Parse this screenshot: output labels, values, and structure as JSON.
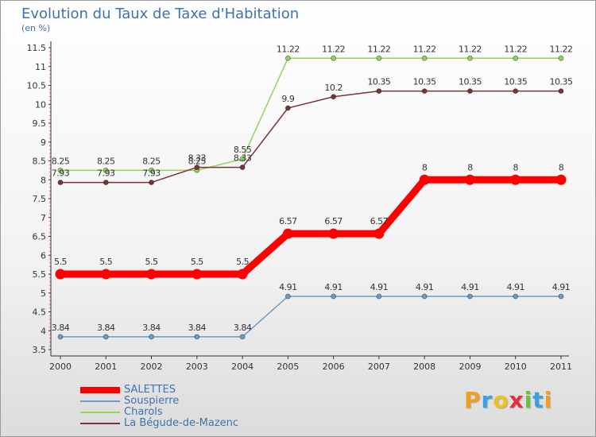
{
  "title": "Evolution du Taux de Taxe d'Habitation",
  "subtitle": "(en %)",
  "logo": {
    "letters": [
      "P",
      "r",
      "o",
      "x",
      "i",
      "t",
      "i"
    ],
    "colors": [
      "#f0a020",
      "#3aa0e0",
      "#f0c020",
      "#e03040",
      "#6ac040",
      "#3aa0e0",
      "#f0a020"
    ]
  },
  "chart_data": {
    "type": "line",
    "categories": [
      "2000",
      "2001",
      "2002",
      "2003",
      "2004",
      "2005",
      "2006",
      "2007",
      "2008",
      "2009",
      "2010",
      "2011"
    ],
    "ylim": [
      3.5,
      11.5
    ],
    "yticks": [
      "3.5",
      "4",
      "4.5",
      "5",
      "5.5",
      "6",
      "6.5",
      "7",
      "7.5",
      "8",
      "8.5",
      "9",
      "9.5",
      "10",
      "10.5",
      "11",
      "11.5"
    ],
    "series": [
      {
        "name": "SALETTES",
        "color": "#ff0000",
        "width": 9,
        "radius": 6.5,
        "values": [
          5.5,
          5.5,
          5.5,
          5.5,
          5.5,
          6.57,
          6.57,
          6.57,
          8,
          8,
          8,
          8
        ],
        "labels": [
          "5.5",
          "5.5",
          "5.5",
          "5.5",
          "5.5",
          "6.57",
          "6.57",
          "6.57",
          "8",
          "8",
          "8",
          "8"
        ]
      },
      {
        "name": "Souspierre",
        "color": "#6a9cc8",
        "width": 1.5,
        "radius": 3,
        "values": [
          3.84,
          3.84,
          3.84,
          3.84,
          3.84,
          4.91,
          4.91,
          4.91,
          4.91,
          4.91,
          4.91,
          4.91
        ],
        "labels": [
          "3.84",
          "3.84",
          "3.84",
          "3.84",
          "3.84",
          "4.91",
          "4.91",
          "4.91",
          "4.91",
          "4.91",
          "4.91",
          "4.91"
        ]
      },
      {
        "name": "Charols",
        "color": "#8ed65a",
        "width": 1.5,
        "radius": 3,
        "values": [
          8.25,
          8.25,
          8.25,
          8.25,
          8.55,
          11.22,
          11.22,
          11.22,
          11.22,
          11.22,
          11.22,
          11.22
        ],
        "labels": [
          "8.25",
          "8.25",
          "8.25",
          "8.25",
          "8.55",
          "11.22",
          "11.22",
          "11.22",
          "11.22",
          "11.22",
          "11.22",
          "11.22"
        ]
      },
      {
        "name": "La Bégude-de-Mazenc",
        "color": "#7a3338",
        "width": 1.5,
        "radius": 3,
        "values": [
          7.93,
          7.93,
          7.93,
          8.33,
          8.33,
          9.9,
          10.2,
          10.35,
          10.35,
          10.35,
          10.35,
          10.35
        ],
        "labels": [
          "7.93",
          "7.93",
          "7.93",
          "8.33",
          "8.33",
          "9.9",
          "10.2",
          "10.35",
          "10.35",
          "10.35",
          "10.35",
          "10.35"
        ]
      }
    ]
  }
}
